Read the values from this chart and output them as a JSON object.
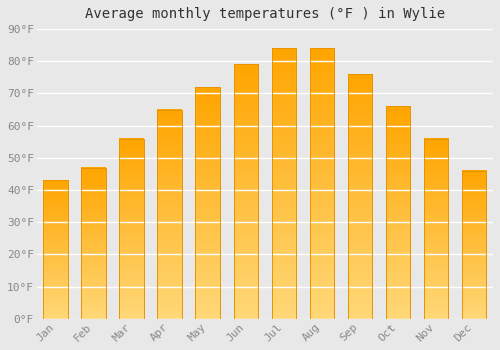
{
  "title": "Average monthly temperatures (°F ) in Wylie",
  "months": [
    "Jan",
    "Feb",
    "Mar",
    "Apr",
    "May",
    "Jun",
    "Jul",
    "Aug",
    "Sep",
    "Oct",
    "Nov",
    "Dec"
  ],
  "values": [
    43,
    47,
    56,
    65,
    72,
    79,
    84,
    84,
    76,
    66,
    56,
    46
  ],
  "bar_color_top": "#FFA500",
  "bar_color_bottom": "#FFD878",
  "bar_border_color": "#E89400",
  "ylim": [
    0,
    90
  ],
  "yticks": [
    0,
    10,
    20,
    30,
    40,
    50,
    60,
    70,
    80,
    90
  ],
  "ytick_labels": [
    "0°F",
    "10°F",
    "20°F",
    "30°F",
    "40°F",
    "50°F",
    "60°F",
    "70°F",
    "80°F",
    "90°F"
  ],
  "background_color": "#e8e8e8",
  "grid_color": "#ffffff",
  "title_fontsize": 10,
  "tick_fontsize": 8,
  "bar_width": 0.65
}
